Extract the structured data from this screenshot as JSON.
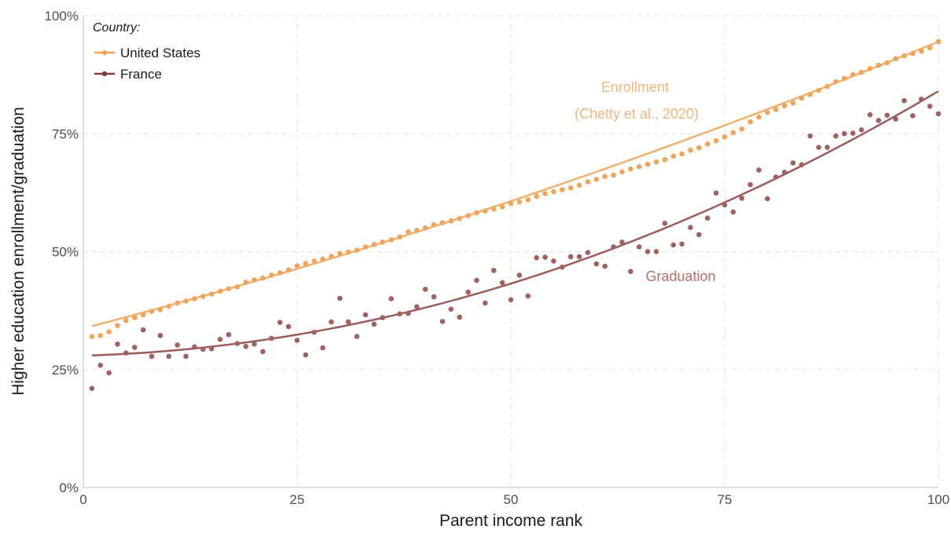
{
  "chart_data": {
    "type": "scatter",
    "xlabel": "Parent income rank",
    "ylabel": "Higher education enrollment/graduation",
    "xlim": [
      0,
      100
    ],
    "ylim": [
      0,
      100
    ],
    "x_ticks": [
      0,
      25,
      50,
      75,
      100
    ],
    "y_ticks": [
      0,
      25,
      50,
      75,
      100
    ],
    "x_tick_labels": [
      "0",
      "25",
      "50",
      "75",
      "100"
    ],
    "y_tick_labels": [
      "0%",
      "25%",
      "50%",
      "75%",
      "100%"
    ],
    "grid": true,
    "legend": {
      "title": "Country:",
      "placement": "top-left",
      "entries": [
        "United States",
        "France"
      ]
    },
    "annotations": {
      "enrollment_line1": "Enrollment",
      "enrollment_line2": "(Chetty et al., 2020)",
      "graduation": "Graduation"
    },
    "series": [
      {
        "name": "United States",
        "label": "Enrollment",
        "color": "#f0a55c",
        "x": [
          1,
          2,
          3,
          4,
          5,
          6,
          7,
          8,
          9,
          10,
          11,
          12,
          13,
          14,
          15,
          16,
          17,
          18,
          19,
          20,
          21,
          22,
          23,
          24,
          25,
          26,
          27,
          28,
          29,
          30,
          31,
          32,
          33,
          34,
          35,
          36,
          37,
          38,
          39,
          40,
          41,
          42,
          43,
          44,
          45,
          46,
          47,
          48,
          49,
          50,
          51,
          52,
          53,
          54,
          55,
          56,
          57,
          58,
          59,
          60,
          61,
          62,
          63,
          64,
          65,
          66,
          67,
          68,
          69,
          70,
          71,
          72,
          73,
          74,
          75,
          76,
          77,
          78,
          79,
          80,
          81,
          82,
          83,
          84,
          85,
          86,
          87,
          88,
          89,
          90,
          91,
          92,
          93,
          94,
          95,
          96,
          97,
          98,
          99,
          100
        ],
        "y": [
          32.0,
          32.2,
          33.0,
          34.3,
          35.4,
          36.0,
          36.6,
          37.3,
          37.7,
          38.4,
          39.1,
          39.5,
          40.0,
          40.5,
          41.0,
          41.6,
          42.1,
          42.5,
          43.5,
          44.0,
          44.4,
          45.0,
          45.5,
          46.1,
          47.0,
          47.5,
          48.0,
          48.4,
          49.0,
          49.6,
          49.9,
          50.3,
          51.0,
          51.5,
          52.0,
          52.5,
          53.1,
          54.2,
          54.5,
          55.0,
          55.7,
          56.1,
          56.5,
          57.0,
          57.6,
          58.2,
          58.6,
          59.0,
          59.5,
          60.2,
          60.5,
          61.0,
          61.7,
          62.3,
          62.7,
          63.1,
          63.5,
          64.1,
          64.8,
          65.3,
          65.9,
          66.2,
          66.9,
          67.5,
          68.0,
          68.5,
          69.0,
          69.5,
          70.2,
          70.7,
          71.5,
          72.0,
          72.8,
          73.5,
          74.3,
          75.2,
          76.0,
          77.5,
          78.5,
          79.5,
          80.1,
          80.9,
          81.5,
          82.5,
          83.3,
          84.2,
          85.0,
          86.0,
          86.7,
          87.5,
          88.0,
          88.8,
          89.5,
          90.0,
          90.9,
          91.5,
          92.0,
          92.5,
          93.2,
          94.5
        ],
        "fit_start": 34.2,
        "fit_end": 94.5
      },
      {
        "name": "France",
        "label": "Graduation",
        "color": "#a0625f",
        "x": [
          1,
          2,
          3,
          4,
          5,
          6,
          7,
          8,
          9,
          10,
          11,
          12,
          13,
          14,
          15,
          16,
          17,
          18,
          19,
          20,
          21,
          22,
          23,
          24,
          25,
          26,
          27,
          28,
          29,
          30,
          31,
          32,
          33,
          34,
          35,
          36,
          37,
          38,
          39,
          40,
          41,
          42,
          43,
          44,
          45,
          46,
          47,
          48,
          49,
          50,
          51,
          52,
          53,
          54,
          55,
          56,
          57,
          58,
          59,
          60,
          61,
          62,
          63,
          64,
          65,
          66,
          67,
          68,
          69,
          70,
          71,
          72,
          73,
          74,
          75,
          76,
          77,
          78,
          79,
          80,
          81,
          82,
          83,
          84,
          85,
          86,
          87,
          88,
          89,
          90,
          91,
          92,
          93,
          94,
          95,
          96,
          97,
          98,
          99,
          100
        ],
        "y": [
          21.0,
          25.9,
          24.3,
          30.4,
          28.5,
          29.7,
          33.4,
          27.8,
          32.2,
          27.8,
          30.2,
          27.8,
          29.8,
          29.3,
          29.4,
          31.4,
          32.4,
          30.5,
          29.9,
          30.4,
          28.8,
          31.6,
          35.0,
          34.1,
          31.2,
          28.1,
          32.9,
          29.6,
          35.1,
          40.1,
          35.1,
          32.0,
          36.6,
          34.6,
          36.0,
          40.0,
          36.8,
          36.9,
          38.3,
          42.0,
          40.4,
          35.2,
          37.8,
          36.1,
          41.4,
          43.9,
          39.1,
          46.0,
          43.4,
          39.8,
          45.0,
          40.6,
          48.7,
          48.8,
          48.0,
          46.7,
          48.9,
          48.9,
          49.8,
          47.4,
          46.9,
          51.0,
          52.0,
          45.8,
          51.0,
          50.0,
          50.0,
          56.0,
          51.4,
          51.6,
          55.1,
          53.6,
          57.1,
          62.4,
          59.9,
          58.4,
          61.3,
          64.2,
          67.3,
          61.2,
          65.8,
          66.8,
          68.8,
          68.4,
          74.5,
          72.1,
          72.1,
          74.5,
          75.0,
          75.1,
          75.8,
          79.0,
          77.8,
          78.9,
          78.1,
          82.0,
          78.8,
          82.3,
          80.8,
          79.2
        ],
        "fit_start": 28.0,
        "fit_end": 84.0
      }
    ]
  }
}
